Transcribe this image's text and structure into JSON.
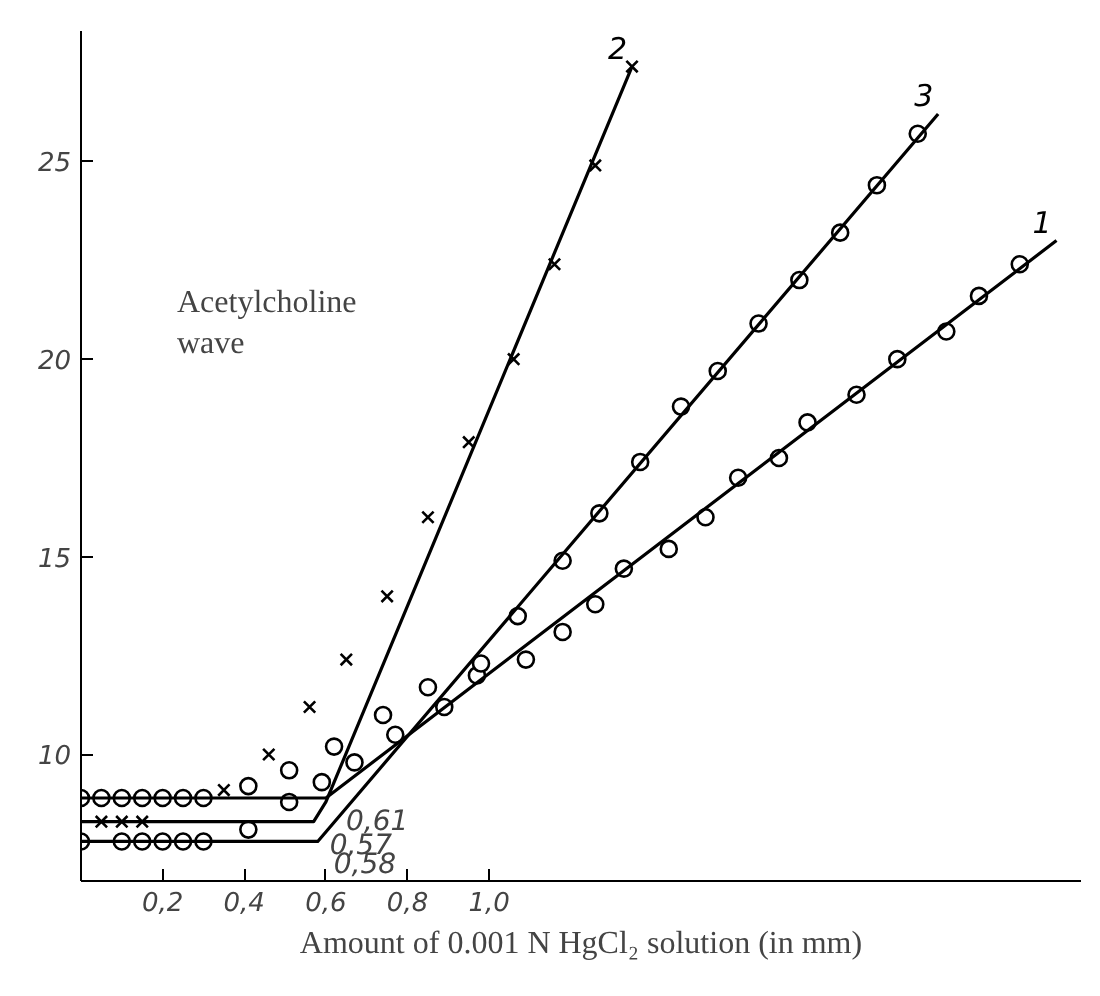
{
  "chart_data": {
    "type": "scatter",
    "xlabel": "Amount of 0.001 N HgCl₂ solution (in mm)",
    "xlim": [
      0,
      2.45
    ],
    "ylim": [
      6.8,
      28.3
    ],
    "xticks": [
      {
        "value": 0.2,
        "label": "0,2"
      },
      {
        "value": 0.4,
        "label": "0,4"
      },
      {
        "value": 0.6,
        "label": "0,6"
      },
      {
        "value": 0.8,
        "label": "0,8"
      },
      {
        "value": 1.0,
        "label": "1,0"
      }
    ],
    "yticks": [
      10,
      15,
      20,
      25
    ],
    "grid": false,
    "series": [
      {
        "marker": "circle",
        "color": "#000000",
        "x": [
          0,
          0.05,
          0.1,
          0.15,
          0.2,
          0.25,
          0.3,
          0.41,
          0.51,
          0.62,
          0.74,
          0.85,
          0.97,
          1.09,
          1.18,
          1.26,
          1.33,
          1.44,
          1.53,
          1.61,
          1.71,
          1.78,
          1.9,
          2.0,
          2.12,
          2.2,
          2.3
        ],
        "values": [
          8.9,
          8.9,
          8.9,
          8.9,
          8.9,
          8.9,
          8.9,
          9.2,
          9.6,
          10.2,
          11.0,
          11.7,
          12.0,
          12.4,
          13.1,
          13.8,
          14.7,
          15.2,
          16.0,
          17.0,
          17.5,
          18.4,
          19.1,
          20.0,
          20.7,
          21.6,
          22.4
        ]
      },
      {
        "marker": "cross",
        "color": "#000000",
        "x": [
          0.05,
          0.1,
          0.15,
          0.35,
          0.46,
          0.56,
          0.65,
          0.75,
          0.85,
          0.95,
          1.06,
          1.16,
          1.26,
          1.35
        ],
        "values": [
          8.3,
          8.3,
          8.3,
          9.1,
          10.0,
          11.2,
          12.4,
          14.0,
          16.0,
          17.9,
          20.0,
          22.4,
          24.9,
          27.4
        ]
      },
      {
        "marker": "circle",
        "color": "#000000",
        "x": [
          0,
          0.1,
          0.15,
          0.2,
          0.25,
          0.3,
          0.41,
          0.51,
          0.59,
          0.67,
          0.77,
          0.89,
          0.98,
          1.07,
          1.18,
          1.27,
          1.37,
          1.47,
          1.56,
          1.66,
          1.76,
          1.86,
          1.95,
          2.05
        ],
        "values": [
          7.8,
          7.8,
          7.8,
          7.8,
          7.8,
          7.8,
          8.1,
          8.8,
          9.3,
          9.8,
          10.5,
          11.2,
          12.3,
          13.5,
          14.9,
          16.1,
          17.4,
          18.8,
          19.7,
          20.9,
          22.0,
          23.2,
          24.4,
          25.7
        ]
      },
      {
        "type": "line",
        "name": "1",
        "color": "#000000",
        "x": [
          0,
          0.6,
          2.39
        ],
        "values": [
          8.9,
          8.9,
          23.0
        ]
      },
      {
        "type": "line",
        "name": "2",
        "color": "#000000",
        "x": [
          0,
          0.57,
          0.6,
          1.35
        ],
        "values": [
          8.3,
          8.3,
          8.8,
          27.4
        ]
      },
      {
        "type": "line",
        "name": "3",
        "color": "#000000",
        "x": [
          0,
          0.58,
          2.1
        ],
        "values": [
          7.8,
          7.8,
          26.2
        ]
      }
    ],
    "annotations": [
      {
        "text": "0,61",
        "x": 0.61,
        "y": 8.9
      },
      {
        "text": "0,57",
        "x": 0.57,
        "y": 8.3
      },
      {
        "text": "0,58",
        "x": 0.58,
        "y": 7.8
      },
      "Acetylcholine\nwave"
    ]
  }
}
